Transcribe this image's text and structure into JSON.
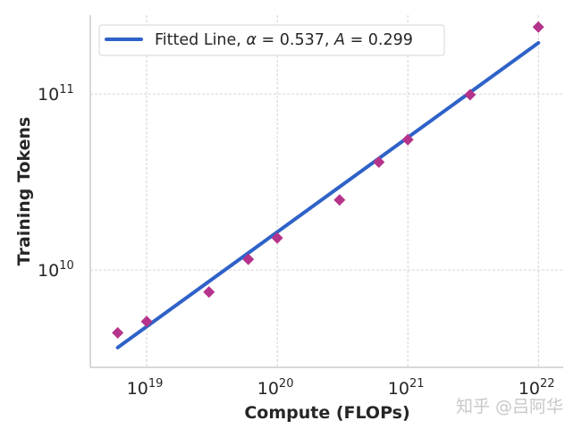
{
  "chart_data": {
    "type": "scatter",
    "title": "",
    "xlabel": "Compute (FLOPs)",
    "ylabel": "Training Tokens",
    "xscale": "log",
    "yscale": "log",
    "xlim": [
      3.7e+18,
      1.55e+22
    ],
    "ylim": [
      2800000000.0,
      280000000000.0
    ],
    "grid": true,
    "legend_placement": "top-left",
    "xticks": [
      {
        "value": 1e+19,
        "base": "10",
        "exp": "19"
      },
      {
        "value": 1e+20,
        "base": "10",
        "exp": "20"
      },
      {
        "value": 1e+21,
        "base": "10",
        "exp": "21"
      },
      {
        "value": 1e+22,
        "base": "10",
        "exp": "22"
      }
    ],
    "yticks": [
      {
        "value": 10000000000.0,
        "base": "10",
        "exp": "10"
      },
      {
        "value": 100000000000.0,
        "base": "10",
        "exp": "11"
      }
    ],
    "points": {
      "x": [
        6e+18,
        1e+19,
        3e+19,
        6e+19,
        1e+20,
        3e+20,
        6e+20,
        1e+21,
        3e+21,
        1e+22
      ],
      "y": [
        4400000000.0,
        5100000000.0,
        7500000000.0,
        11500000000.0,
        15200000000.0,
        25000000000.0,
        41000000000.0,
        55000000000.0,
        99000000000.0,
        240000000000.0
      ],
      "color": "#b5338a",
      "marker": "diamond"
    },
    "fit": {
      "label_prefix": "Fitted Line, ",
      "alpha_sym": "α",
      "alpha": "0.537",
      "A_sym": "A",
      "A": "0.299",
      "x_range": [
        6e+18,
        1e+22
      ],
      "color": "#2f62c8"
    }
  },
  "watermark": "知乎 @吕阿华"
}
